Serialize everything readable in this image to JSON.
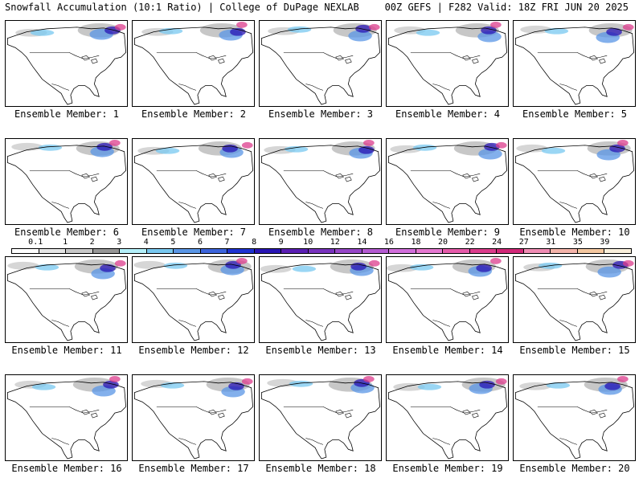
{
  "header": {
    "left": "Snowfall Accumulation (10:1 Ratio) | College of DuPage NEXLAB",
    "right": "00Z GEFS | F282 Valid: 18Z FRI JUN 20 2025"
  },
  "panels": [
    {
      "label": "Ensemble Member: 1"
    },
    {
      "label": "Ensemble Member: 2"
    },
    {
      "label": "Ensemble Member: 3"
    },
    {
      "label": "Ensemble Member: 4"
    },
    {
      "label": "Ensemble Member: 5"
    },
    {
      "label": "Ensemble Member: 6"
    },
    {
      "label": "Ensemble Member: 7"
    },
    {
      "label": "Ensemble Member: 8"
    },
    {
      "label": "Ensemble Member: 9"
    },
    {
      "label": "Ensemble Member: 10"
    },
    {
      "label": "Ensemble Member: 11"
    },
    {
      "label": "Ensemble Member: 12"
    },
    {
      "label": "Ensemble Member: 13"
    },
    {
      "label": "Ensemble Member: 14"
    },
    {
      "label": "Ensemble Member: 15"
    },
    {
      "label": "Ensemble Member: 16"
    },
    {
      "label": "Ensemble Member: 17"
    },
    {
      "label": "Ensemble Member: 18"
    },
    {
      "label": "Ensemble Member: 19"
    },
    {
      "label": "Ensemble Member: 20"
    }
  ],
  "colorbar": {
    "labels": [
      "0.1",
      "1",
      "2",
      "3",
      "4",
      "5",
      "6",
      "7",
      "8",
      "9",
      "10",
      "12",
      "14",
      "16",
      "18",
      "20",
      "22",
      "24",
      "27",
      "31",
      "35",
      "39"
    ],
    "colors": [
      "#ffffff",
      "#e6e6e6",
      "#c8c8c8",
      "#969696",
      "#b4f0fa",
      "#78c8f0",
      "#5a96e6",
      "#3c64dc",
      "#1e32d2",
      "#2814b4",
      "#5a1eb4",
      "#7832be",
      "#9646c8",
      "#b45ad2",
      "#d26edc",
      "#e678d2",
      "#e65aaa",
      "#dc3c8c",
      "#d22878",
      "#f08cb4",
      "#f5b4aa",
      "#f5c8a0",
      "#faf0dc"
    ]
  }
}
